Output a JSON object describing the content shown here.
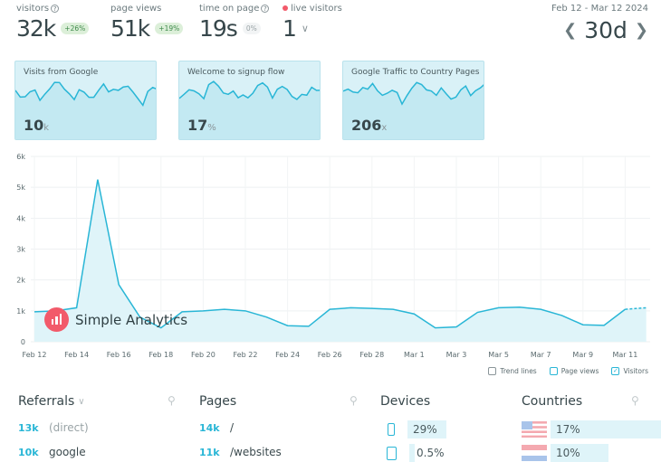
{
  "stats": [
    {
      "label": "visitors",
      "value": "32k",
      "badge": "+26%",
      "help": true
    },
    {
      "label": "page views",
      "value": "51k",
      "badge": "+19%",
      "help": false
    },
    {
      "label": "time on page",
      "value": "19s",
      "badge": "0%",
      "help": true
    },
    {
      "label": "live visitors",
      "value": "1",
      "badge": "",
      "help": false
    }
  ],
  "range": {
    "label": "Feb 12 - Mar 12 2024",
    "value": "30d",
    "prev_icon": "chevron-left-icon",
    "next_icon": "chevron-right-icon"
  },
  "cards": [
    {
      "title": "Visits from Google",
      "value": "10",
      "unit": "k"
    },
    {
      "title": "Welcome to signup flow",
      "value": "17",
      "unit": "%"
    },
    {
      "title": "Google Traffic to Country Pages",
      "value": "206",
      "unit": "x"
    }
  ],
  "chart_data": {
    "type": "area",
    "x": [
      "Feb 12",
      "Feb 13",
      "Feb 14",
      "Feb 15",
      "Feb 16",
      "Feb 17",
      "Feb 18",
      "Feb 19",
      "Feb 20",
      "Feb 21",
      "Feb 22",
      "Feb 23",
      "Feb 24",
      "Feb 25",
      "Feb 26",
      "Feb 27",
      "Feb 28",
      "Feb 29",
      "Mar 1",
      "Mar 2",
      "Mar 3",
      "Mar 4",
      "Mar 5",
      "Mar 6",
      "Mar 7",
      "Mar 8",
      "Mar 9",
      "Mar 10",
      "Mar 11",
      "Mar 12"
    ],
    "series": [
      {
        "name": "Visitors",
        "values": [
          970,
          1000,
          1100,
          5250,
          1850,
          800,
          450,
          970,
          1000,
          1050,
          1000,
          800,
          520,
          500,
          1050,
          1100,
          1080,
          1050,
          900,
          450,
          480,
          950,
          1100,
          1120,
          1050,
          850,
          550,
          530,
          1050,
          1100
        ]
      }
    ],
    "xticks": [
      "Feb 12",
      "Feb 14",
      "Feb 16",
      "Feb 18",
      "Feb 20",
      "Feb 22",
      "Feb 24",
      "Feb 26",
      "Feb 28",
      "Mar 1",
      "Mar 3",
      "Mar 5",
      "Mar 7",
      "Mar 9",
      "Mar 11"
    ],
    "yticks": [
      "0",
      "1k",
      "2k",
      "3k",
      "4k",
      "5k",
      "6k"
    ],
    "ylim": [
      0,
      6000
    ],
    "grid": true,
    "color": "#29b6d6"
  },
  "logo": "Simple Analytics",
  "legend": [
    {
      "label": "Trend lines",
      "checked": false
    },
    {
      "label": "Page views",
      "checked": false
    },
    {
      "label": "Visitors",
      "checked": true
    }
  ],
  "referrals": {
    "title": "Referrals",
    "rows": [
      {
        "count": "13k",
        "label": "(direct)"
      },
      {
        "count": "10k",
        "label": "google"
      }
    ]
  },
  "pages": {
    "title": "Pages",
    "rows": [
      {
        "count": "14k",
        "label": "/"
      },
      {
        "count": "11k",
        "label": "/websites"
      }
    ]
  },
  "devices": {
    "title": "Devices",
    "rows": [
      {
        "icon": "phone-icon",
        "pct": "29%"
      },
      {
        "icon": "tablet-icon",
        "pct": "0.5%"
      }
    ]
  },
  "countries": {
    "title": "Countries",
    "rows": [
      {
        "icon": "us-flag-icon",
        "pct": "17%"
      },
      {
        "icon": "nl-flag-icon",
        "pct": "10%"
      }
    ]
  }
}
